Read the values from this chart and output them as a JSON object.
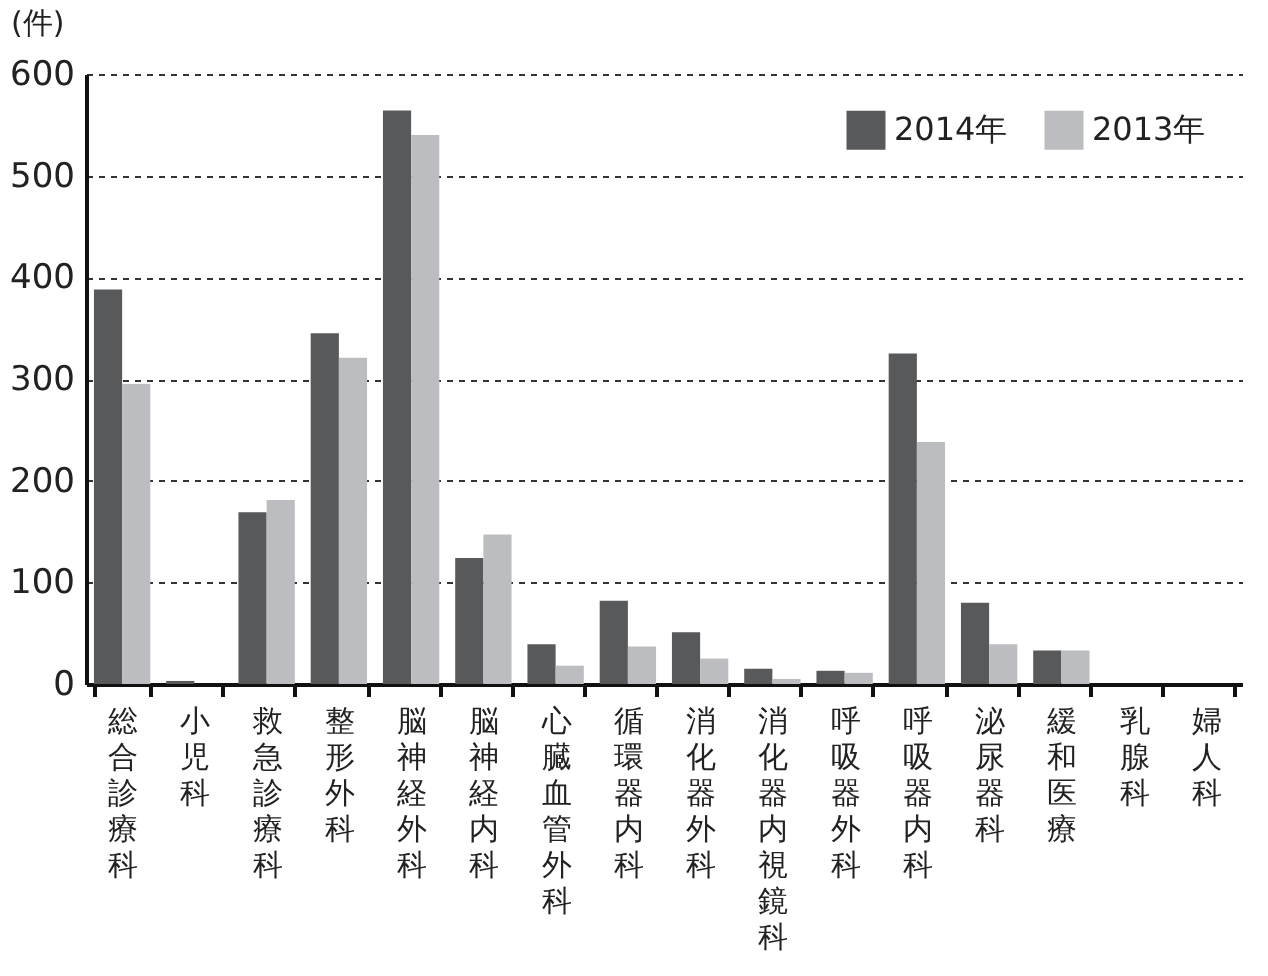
{
  "chart_data": {
    "type": "bar",
    "ylabel": "(件)",
    "categories": [
      "総合診療科",
      "小児科",
      "救急診療科",
      "整形外科",
      "脳神経外科",
      "脳神経内科",
      "心臓血管外科",
      "循環器内科",
      "消化器外科",
      "消化器内視鏡科",
      "呼吸器外科",
      "呼吸器内科",
      "泌尿器科",
      "緩和医療",
      "乳腺科",
      "婦人科"
    ],
    "series": [
      {
        "name": "2014年",
        "color": "#58595b",
        "values": [
          388,
          3,
          169,
          345,
          564,
          124,
          39,
          82,
          51,
          15,
          13,
          325,
          80,
          33,
          0,
          0
        ]
      },
      {
        "name": "2013年",
        "color": "#bcbdc0",
        "values": [
          295,
          0,
          181,
          321,
          540,
          147,
          18,
          37,
          25,
          5,
          11,
          238,
          39,
          33,
          0,
          0
        ]
      }
    ],
    "ylim": [
      0,
      600
    ],
    "yticks": [
      0,
      100,
      200,
      300,
      400,
      500,
      600
    ],
    "grid": "y",
    "legend": "top right"
  }
}
